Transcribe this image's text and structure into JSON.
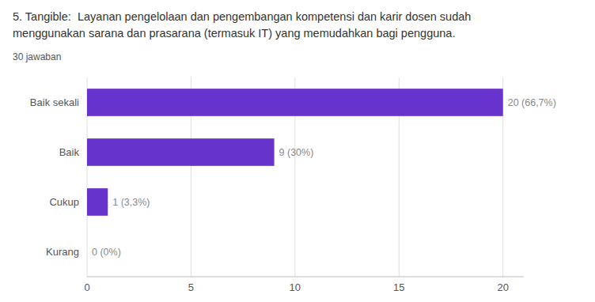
{
  "chart_data": {
    "type": "bar",
    "orientation": "horizontal",
    "title": [
      "5. Tangible:  Layanan pengelolaan dan pengembangan kompetensi dan karir dosen sudah",
      "menggunakan sarana dan prasarana (termasuk IT) yang memudahkan bagi pengguna."
    ],
    "subtitle": "30 jawaban",
    "categories": [
      "Baik sekali",
      "Baik",
      "Cukup",
      "Kurang"
    ],
    "values": [
      20,
      9,
      1,
      0
    ],
    "value_labels": [
      "20 (66,7%)",
      "9 (30%)",
      "1 (3,3%)",
      "0 (0%)"
    ],
    "data_labels": true,
    "color": "#6633cc",
    "xlim": [
      0,
      21
    ],
    "xticks": [
      0,
      5,
      10,
      15,
      20
    ],
    "grid": true
  }
}
